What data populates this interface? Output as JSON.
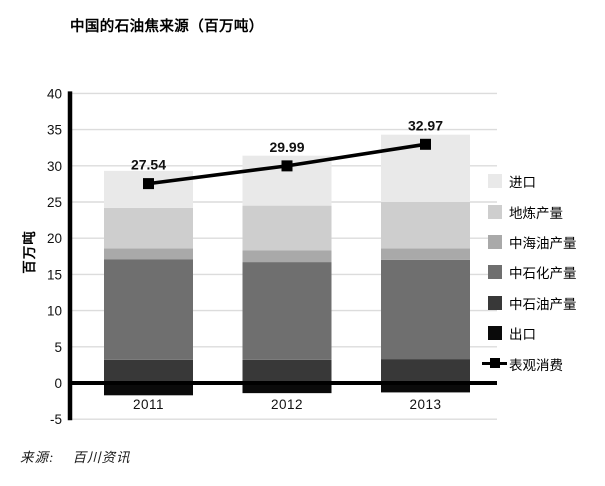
{
  "chart": {
    "title": "中国的石油焦来源（百万吨）"
  },
  "source": {
    "label": "来源:",
    "value": "百川资讯"
  },
  "colors": {
    "axis": "#000000",
    "grid": "#dcdcdc",
    "text": "#111111",
    "line": "#000000",
    "background": "#ffffff"
  },
  "chart_data": {
    "type": "bar",
    "subtype": "stacked-bars-with-line-overlay",
    "title": "中国的石油焦来源（百万吨）",
    "xlabel": "",
    "ylabel": "百万吨",
    "categories": [
      "2011",
      "2012",
      "2013"
    ],
    "ylim": [
      -5,
      40
    ],
    "ytick_step": 5,
    "yticks": [
      40,
      35,
      30,
      25,
      20,
      15,
      10,
      5,
      0,
      -5
    ],
    "grid": true,
    "legend_position": "right",
    "series": [
      {
        "name": "进口",
        "color": "#e9e9e9",
        "values": [
          5.1,
          6.9,
          9.3
        ]
      },
      {
        "name": "地炼产量",
        "color": "#cecece",
        "values": [
          5.6,
          6.2,
          6.4
        ]
      },
      {
        "name": "中海油产量",
        "color": "#a9a9a9",
        "values": [
          1.5,
          1.6,
          1.6
        ]
      },
      {
        "name": "中石化产量",
        "color": "#6f6f6f",
        "values": [
          13.9,
          13.5,
          13.7
        ]
      },
      {
        "name": "中石油产量",
        "color": "#383838",
        "values": [
          3.2,
          3.2,
          3.3
        ]
      },
      {
        "name": "出口",
        "color": "#0a0a0a",
        "values": [
          -1.7,
          -1.4,
          -1.3
        ]
      }
    ],
    "line_series": {
      "name": "表观消费",
      "color": "#000000",
      "values": [
        27.54,
        29.99,
        32.97
      ],
      "labels": [
        "27.54",
        "29.99",
        "32.97"
      ]
    }
  }
}
